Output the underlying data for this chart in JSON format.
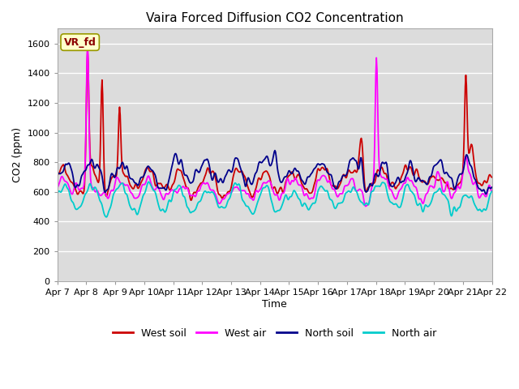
{
  "title": "Vaira Forced Diffusion CO2 Concentration",
  "xlabel": "Time",
  "ylabel": "CO2 (ppm)",
  "ylim": [
    0,
    1700
  ],
  "yticks": [
    0,
    200,
    400,
    600,
    800,
    1000,
    1200,
    1400,
    1600
  ],
  "series_labels": [
    "West soil",
    "West air",
    "North soil",
    "North air"
  ],
  "series_colors": [
    "#cc0000",
    "#ff00ff",
    "#00008b",
    "#00cccc"
  ],
  "annotation_text": "VR_fd",
  "annotation_fg": "#8B0000",
  "annotation_bg": "#ffffcc",
  "annotation_edge": "#999900",
  "bg_color": "#dcdcdc",
  "grid_color": "#ffffff",
  "linewidth": 1.3,
  "x_tick_labels": [
    "Apr 7",
    "Apr 8",
    "Apr 9",
    "Apr 10",
    "Apr 11",
    "Apr 12",
    "Apr 13",
    "Apr 14",
    "Apr 15",
    "Apr 16",
    "Apr 17",
    "Apr 18",
    "Apr 19",
    "Apr 20",
    "Apr 21",
    "Apr 22"
  ],
  "n_points": 720,
  "random_seed": 123
}
